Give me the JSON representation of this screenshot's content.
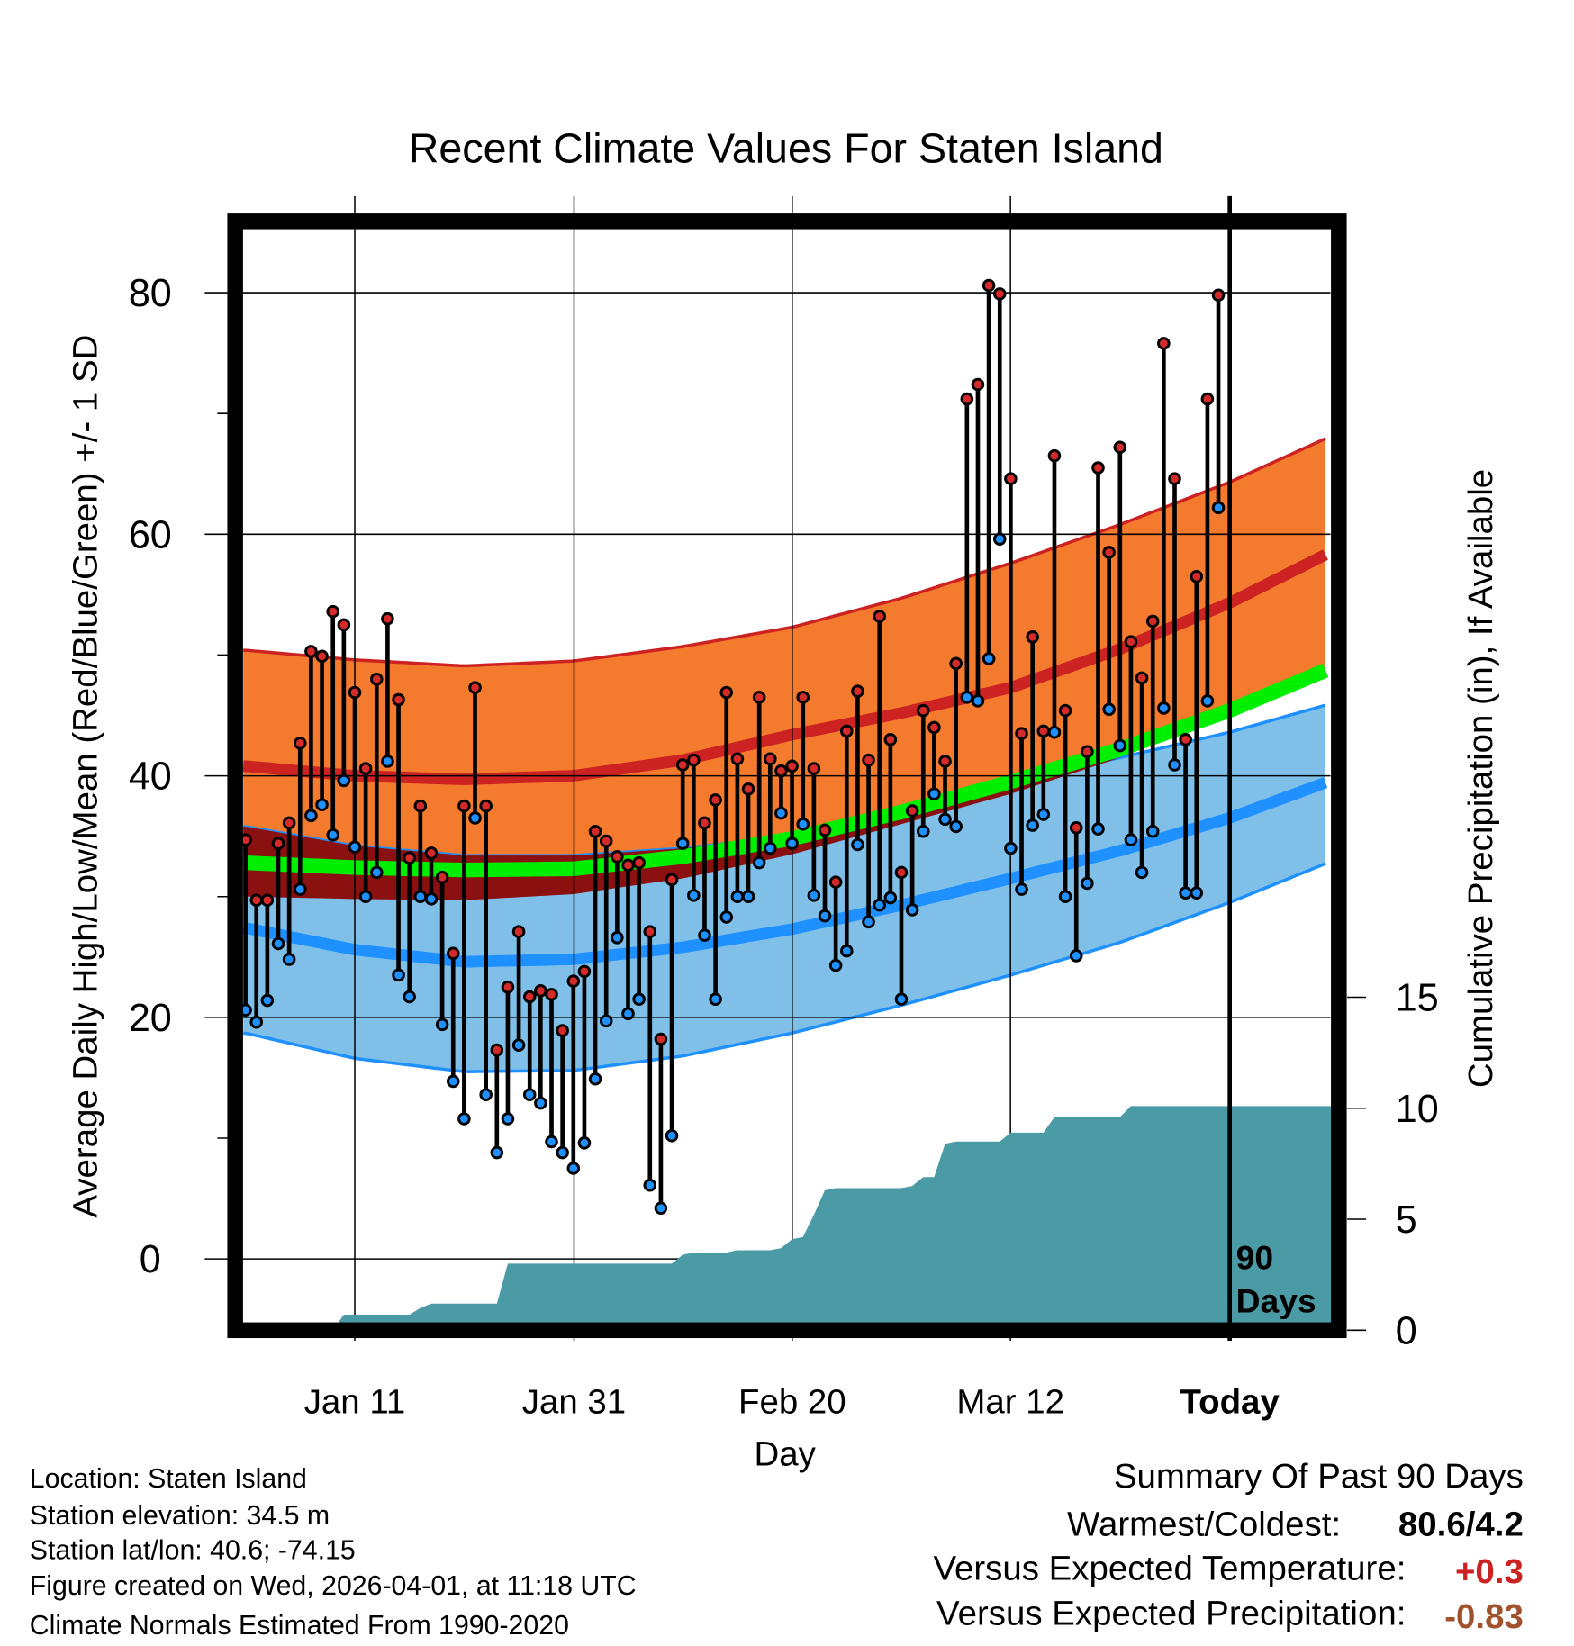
{
  "title": "Recent Climate Values For Staten Island",
  "colors": {
    "high_sd_band": "#f47a2e",
    "high_mean_line": "#cc2222",
    "overlap_band": "#8b1010",
    "mean_line": "#00ee00",
    "low_sd_band": "#80c0e8",
    "low_mean_line": "#1e90ff",
    "precip_area": "#4a9ba5",
    "high_dot": "#d42a2a",
    "low_dot": "#1e90ff",
    "temp_anomaly": "#cc2222",
    "precip_anomaly": "#a0522d"
  },
  "chart_data": {
    "type": "line",
    "title": "Recent Climate Values For Staten Island",
    "xlabel": "Day",
    "ylabel": "Average Daily High/Low/Mean (Red/Blue/Green) +/- 1 SD",
    "y2label": "Cumulative Precipitation (in), If Available",
    "ylim": [
      -5,
      86
    ],
    "y2lim": [
      0,
      15
    ],
    "yticks": [
      "0",
      "20",
      "40",
      "60",
      "80"
    ],
    "y2ticks": [
      "0",
      "5",
      "10",
      "15"
    ],
    "xticks": [
      "Jan 11",
      "Jan 31",
      "Feb 20",
      "Mar 12",
      "Today"
    ],
    "today_marker_label": [
      "90",
      "Days"
    ],
    "grid": true,
    "highs": [
      34.7,
      29.7,
      29.7,
      34.4,
      36.1,
      42.7,
      50.3,
      49.9,
      53.6,
      52.5,
      46.9,
      40.6,
      48.0,
      53.0,
      46.3,
      33.2,
      37.5,
      33.6,
      31.6,
      25.3,
      37.5,
      47.3,
      37.5,
      17.3,
      22.5,
      27.1,
      21.7,
      22.2,
      21.9,
      18.9,
      23.0,
      23.8,
      35.4,
      34.6,
      33.3,
      32.6,
      32.8,
      27.1,
      18.2,
      31.4,
      40.9,
      41.3,
      36.1,
      38.0,
      46.9,
      41.4,
      38.9,
      46.5,
      41.4,
      40.4,
      40.8,
      46.5,
      40.6,
      35.5,
      31.2,
      43.7,
      47.0,
      41.3,
      53.2,
      43.0,
      32.0,
      37.1,
      45.4,
      44.0,
      41.2,
      49.3,
      71.2,
      72.4,
      80.6,
      79.9,
      64.6,
      43.5,
      51.5,
      43.7,
      66.5,
      45.4,
      35.7,
      42.0,
      65.5,
      58.5,
      67.2,
      51.1,
      48.1,
      52.8,
      75.8,
      64.6,
      43.0,
      56.5,
      71.2,
      79.8
    ],
    "lows": [
      20.6,
      19.6,
      21.4,
      26.1,
      24.8,
      30.6,
      36.7,
      37.6,
      35.1,
      39.6,
      34.1,
      30.0,
      32.0,
      41.2,
      23.5,
      21.7,
      30.0,
      29.8,
      19.4,
      14.7,
      11.6,
      36.5,
      13.6,
      8.8,
      11.6,
      17.7,
      13.6,
      12.9,
      9.7,
      8.8,
      7.5,
      9.6,
      14.9,
      19.7,
      26.6,
      20.3,
      21.5,
      6.1,
      4.2,
      10.2,
      34.4,
      30.1,
      26.8,
      21.5,
      28.3,
      30.0,
      30.0,
      32.8,
      34.0,
      36.9,
      34.4,
      36.0,
      30.1,
      28.4,
      24.3,
      25.5,
      34.3,
      27.9,
      29.3,
      29.9,
      21.5,
      28.9,
      35.4,
      38.5,
      36.4,
      35.8,
      46.5,
      46.2,
      49.7,
      59.6,
      34.0,
      30.6,
      35.9,
      36.8,
      43.6,
      30.0,
      25.1,
      31.1,
      35.6,
      45.5,
      42.5,
      34.7,
      32.0,
      35.4,
      45.6,
      40.9,
      30.3,
      30.3,
      46.2,
      62.2
    ],
    "cumulative_precip_in": [
      0,
      0,
      0,
      0,
      0,
      0,
      0,
      0,
      0,
      0.7,
      0.7,
      0.7,
      0.7,
      0.7,
      0.7,
      0.7,
      1.0,
      1.2,
      1.2,
      1.2,
      1.2,
      1.2,
      1.2,
      1.2,
      3.0,
      3.0,
      3.0,
      3.0,
      3.0,
      3.0,
      3.0,
      3.0,
      3.0,
      3.0,
      3.0,
      3.0,
      3.0,
      3.0,
      3.0,
      3.0,
      3.4,
      3.5,
      3.5,
      3.5,
      3.5,
      3.6,
      3.6,
      3.6,
      3.6,
      3.7,
      4.1,
      4.2,
      5.2,
      6.3,
      6.4,
      6.4,
      6.4,
      6.4,
      6.4,
      6.4,
      6.4,
      6.5,
      6.9,
      6.9,
      8.4,
      8.5,
      8.5,
      8.5,
      8.5,
      8.5,
      8.9,
      8.9,
      8.9,
      8.9,
      9.6,
      9.6,
      9.6,
      9.6,
      9.6,
      9.6,
      9.6,
      10.1,
      10.1,
      10.1,
      10.1,
      10.1,
      10.1,
      10.1,
      10.1,
      10.1
    ],
    "normals": {
      "day_index": [
        0,
        10,
        20,
        30,
        40,
        50,
        60,
        70,
        80,
        90,
        99
      ],
      "high_plus_sd": [
        50.4,
        49.6,
        49.1,
        49.5,
        50.7,
        52.3,
        54.7,
        57.6,
        60.8,
        64.3,
        68.0
      ],
      "high_mean": [
        40.8,
        40.0,
        39.7,
        40.0,
        41.3,
        43.4,
        45.2,
        47.3,
        50.5,
        54.3,
        58.4
      ],
      "high_minus_sd": [
        30.0,
        29.8,
        29.7,
        30.2,
        31.5,
        33.5,
        36.0,
        38.5,
        41.5,
        45.0,
        48.5
      ],
      "mean": [
        32.8,
        32.4,
        32.2,
        32.3,
        33.3,
        34.8,
        37.0,
        39.5,
        42.2,
        45.4,
        48.8
      ],
      "low_plus_sd": [
        35.8,
        34.2,
        33.4,
        33.4,
        34.0,
        35.0,
        37.2,
        39.5,
        41.5,
        43.6,
        45.9
      ],
      "low_mean": [
        27.4,
        25.6,
        24.6,
        24.8,
        25.8,
        27.3,
        29.3,
        31.5,
        33.8,
        36.5,
        39.5
      ],
      "low_minus_sd": [
        18.7,
        16.6,
        15.5,
        15.6,
        16.8,
        18.7,
        21.0,
        23.5,
        26.2,
        29.5,
        32.8
      ]
    }
  },
  "footer": {
    "location": "Location: Staten Island",
    "elevation": "Station elevation: 34.5 m",
    "latlon": "Station lat/lon: 40.6; -74.15",
    "created": "Figure created on Wed, 2026-04-01, at 11:18 UTC",
    "normals": "Climate Normals Estimated From 1990-2020"
  },
  "summary": {
    "heading": "Summary Of Past 90 Days",
    "warmest_label": "Warmest/Coldest:",
    "warmest_value": "80.6/4.2",
    "temp_label": "Versus Expected Temperature:",
    "temp_value": "+0.3",
    "precip_label": "Versus Expected Precipitation:",
    "precip_value": "-0.83"
  }
}
